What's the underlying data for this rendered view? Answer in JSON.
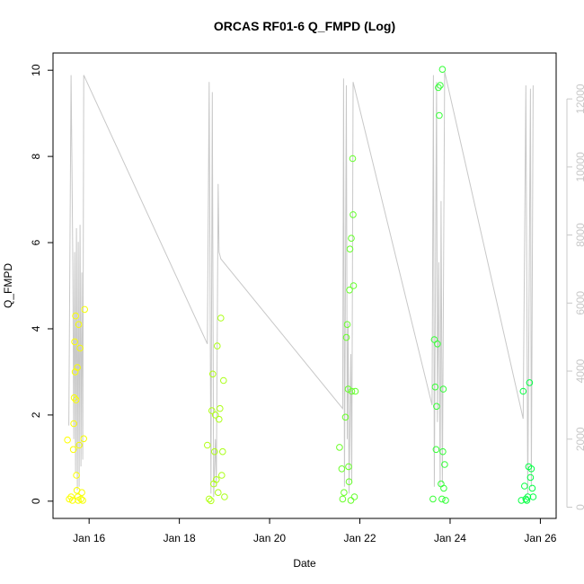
{
  "chart_data": {
    "type": "scatter",
    "title": "ORCAS RF01-6 Q_FMPD (Log)",
    "xlabel": "Date",
    "ylabel": "Q_FMPD",
    "x_ticks": [
      {
        "value": 16,
        "label": "Jan 16"
      },
      {
        "value": 18,
        "label": "Jan 18"
      },
      {
        "value": 20,
        "label": "Jan 20"
      },
      {
        "value": 22,
        "label": "Jan 22"
      },
      {
        "value": 24,
        "label": "Jan 24"
      },
      {
        "value": 26,
        "label": "Jan 26"
      }
    ],
    "xlim": [
      15.2,
      26.35
    ],
    "ylim": [
      -0.4,
      10.4
    ],
    "y_ticks": [
      0,
      2,
      4,
      6,
      8,
      10
    ],
    "y2_ticks": [
      0,
      2000,
      4000,
      6000,
      8000,
      10000,
      12000
    ],
    "y2lim": [
      -330,
      13350
    ],
    "box": true,
    "grid": false,
    "series": [
      {
        "kind": "points",
        "color_scheme": "yellow-to-green by time",
        "point_color_start": "#ffff00",
        "point_color_end": "#00ff44",
        "points": [
          [
            15.52,
            1.42
          ],
          [
            15.56,
            0.05
          ],
          [
            15.6,
            0.1
          ],
          [
            15.63,
            0.02
          ],
          [
            15.65,
            1.2
          ],
          [
            15.66,
            1.8
          ],
          [
            15.67,
            2.4
          ],
          [
            15.68,
            3.7
          ],
          [
            15.69,
            3.0
          ],
          [
            15.7,
            4.3
          ],
          [
            15.71,
            2.35
          ],
          [
            15.72,
            0.6
          ],
          [
            15.73,
            0.25
          ],
          [
            15.74,
            3.1
          ],
          [
            15.75,
            0.1
          ],
          [
            15.76,
            0.02
          ],
          [
            15.77,
            4.1
          ],
          [
            15.78,
            1.3
          ],
          [
            15.8,
            3.55
          ],
          [
            15.82,
            0.05
          ],
          [
            15.84,
            0.2
          ],
          [
            15.86,
            0.02
          ],
          [
            15.88,
            1.45
          ],
          [
            15.9,
            4.45
          ],
          [
            18.62,
            1.3
          ],
          [
            18.66,
            0.05
          ],
          [
            18.7,
            0.01
          ],
          [
            18.72,
            2.1
          ],
          [
            18.74,
            2.95
          ],
          [
            18.76,
            0.4
          ],
          [
            18.78,
            1.15
          ],
          [
            18.8,
            2.0
          ],
          [
            18.82,
            0.5
          ],
          [
            18.84,
            3.6
          ],
          [
            18.86,
            0.2
          ],
          [
            18.88,
            1.9
          ],
          [
            18.9,
            2.15
          ],
          [
            18.92,
            4.25
          ],
          [
            18.94,
            0.6
          ],
          [
            18.96,
            1.15
          ],
          [
            18.98,
            2.8
          ],
          [
            19.0,
            0.1
          ],
          [
            21.55,
            1.25
          ],
          [
            21.6,
            0.75
          ],
          [
            21.62,
            0.05
          ],
          [
            21.65,
            0.2
          ],
          [
            21.68,
            1.95
          ],
          [
            21.7,
            3.8
          ],
          [
            21.72,
            4.1
          ],
          [
            21.74,
            2.6
          ],
          [
            21.75,
            0.8
          ],
          [
            21.76,
            0.45
          ],
          [
            21.77,
            4.9
          ],
          [
            21.78,
            5.85
          ],
          [
            21.8,
            0.02
          ],
          [
            21.81,
            6.1
          ],
          [
            21.82,
            2.55
          ],
          [
            21.84,
            7.95
          ],
          [
            21.85,
            6.65
          ],
          [
            21.86,
            5.0
          ],
          [
            21.88,
            0.1
          ],
          [
            21.9,
            2.55
          ],
          [
            23.62,
            0.05
          ],
          [
            23.65,
            3.75
          ],
          [
            23.67,
            2.65
          ],
          [
            23.69,
            1.2
          ],
          [
            23.7,
            2.2
          ],
          [
            23.72,
            3.65
          ],
          [
            23.74,
            9.6
          ],
          [
            23.76,
            8.95
          ],
          [
            23.78,
            9.65
          ],
          [
            23.8,
            0.4
          ],
          [
            23.82,
            0.05
          ],
          [
            23.83,
            10.02
          ],
          [
            23.84,
            1.15
          ],
          [
            23.85,
            2.6
          ],
          [
            23.86,
            0.3
          ],
          [
            23.88,
            0.85
          ],
          [
            23.9,
            0.02
          ],
          [
            25.58,
            0.02
          ],
          [
            25.62,
            2.55
          ],
          [
            25.65,
            0.35
          ],
          [
            25.68,
            0.05
          ],
          [
            25.7,
            0.02
          ],
          [
            25.72,
            0.1
          ],
          [
            25.74,
            0.8
          ],
          [
            25.76,
            2.75
          ],
          [
            25.78,
            0.55
          ],
          [
            25.8,
            0.75
          ],
          [
            25.82,
            0.3
          ],
          [
            25.84,
            0.1
          ]
        ]
      },
      {
        "kind": "line",
        "axis": "right",
        "color": "#c8c8c8",
        "points": [
          [
            15.55,
            2400
          ],
          [
            15.6,
            12700
          ],
          [
            15.62,
            10000
          ],
          [
            15.64,
            7000
          ],
          [
            15.66,
            2000
          ],
          [
            15.68,
            7500
          ],
          [
            15.7,
            1000
          ],
          [
            15.72,
            8200
          ],
          [
            15.74,
            500
          ],
          [
            15.76,
            7800
          ],
          [
            15.78,
            600
          ],
          [
            15.8,
            8300
          ],
          [
            15.82,
            1200
          ],
          [
            15.84,
            6900
          ],
          [
            15.86,
            1400
          ],
          [
            15.88,
            12700
          ],
          [
            18.62,
            4800
          ],
          [
            18.66,
            12500
          ],
          [
            18.7,
            400
          ],
          [
            18.73,
            12200
          ],
          [
            18.76,
            300
          ],
          [
            18.8,
            2000
          ],
          [
            18.82,
            600
          ],
          [
            18.86,
            9500
          ],
          [
            18.88,
            7500
          ],
          [
            18.92,
            7300
          ],
          [
            21.62,
            2900
          ],
          [
            21.64,
            12600
          ],
          [
            21.66,
            600
          ],
          [
            21.7,
            12400
          ],
          [
            21.72,
            2000
          ],
          [
            21.74,
            5400
          ],
          [
            21.76,
            400
          ],
          [
            21.8,
            4500
          ],
          [
            21.82,
            700
          ],
          [
            21.85,
            12500
          ],
          [
            23.6,
            3000
          ],
          [
            23.63,
            12700
          ],
          [
            23.65,
            600
          ],
          [
            23.7,
            12500
          ],
          [
            23.72,
            2500
          ],
          [
            23.75,
            7200
          ],
          [
            23.78,
            600
          ],
          [
            23.8,
            9000
          ],
          [
            23.83,
            700
          ],
          [
            23.88,
            12800
          ],
          [
            25.62,
            2600
          ],
          [
            25.68,
            12400
          ],
          [
            25.72,
            400
          ],
          [
            25.78,
            12300
          ],
          [
            25.8,
            600
          ],
          [
            25.84,
            12400
          ]
        ]
      }
    ]
  }
}
